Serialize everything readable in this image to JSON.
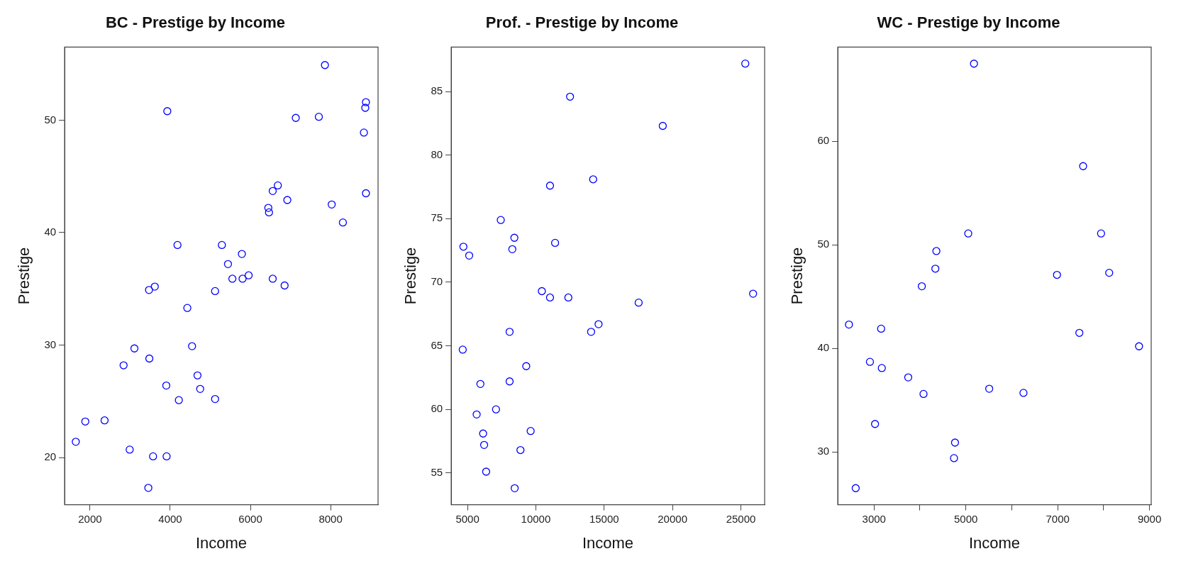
{
  "chart_data": [
    {
      "type": "scatter",
      "title": "BC - Prestige by Income",
      "xlabel": "Income",
      "ylabel": "Prestige",
      "xlim": [
        1366,
        9183
      ],
      "ylim": [
        15.8,
        56.5
      ],
      "xticks": [
        2000,
        4000,
        6000,
        8000
      ],
      "yticks": [
        20,
        30,
        40,
        50
      ],
      "marker": "circle",
      "grid": false,
      "series": [
        {
          "color": "#0000ff",
          "x": [
            1645,
            1882,
            2363,
            2837,
            3107,
            2989,
            3471,
            3615,
            3479,
            3572,
            3454,
            3910,
            3902,
            3927,
            4181,
            4215,
            4426,
            4544,
            4680,
            4747,
            5119,
            5119,
            5288,
            5440,
            5550,
            5787,
            5804,
            5956,
            6556,
            6852,
            6446,
            6463,
            6556,
            6683,
            6920,
            7131,
            7706,
            7858,
            8027,
            8306,
            8830,
            8881,
            8864,
            8881
          ],
          "values": [
            21.4,
            23.2,
            23.3,
            28.2,
            29.7,
            20.7,
            34.9,
            35.2,
            28.8,
            20.1,
            17.3,
            20.1,
            26.4,
            50.8,
            38.9,
            25.1,
            33.3,
            29.9,
            27.3,
            26.1,
            25.2,
            34.8,
            38.9,
            37.2,
            35.9,
            38.1,
            35.9,
            36.2,
            35.9,
            35.3,
            42.2,
            41.8,
            43.7,
            44.2,
            42.9,
            50.2,
            50.3,
            54.9,
            42.5,
            40.9,
            48.9,
            51.6,
            51.1,
            43.5
          ]
        }
      ]
    },
    {
      "type": "scatter",
      "title": "Prof. - Prestige by Income",
      "xlabel": "Income",
      "ylabel": "Prestige",
      "xlim": [
        3807,
        26739
      ],
      "ylim": [
        52.5,
        88.5
      ],
      "xticks": [
        5000,
        10000,
        15000,
        20000,
        25000
      ],
      "yticks": [
        55,
        60,
        65,
        70,
        75,
        80,
        85
      ],
      "marker": "circle",
      "grid": false,
      "series": [
        {
          "color": "#0000ff",
          "x": [
            4702,
            5124,
            4652,
            5944,
            5671,
            6143,
            6217,
            6366,
            7087,
            7435,
            8081,
            8081,
            8280,
            8429,
            8453,
            8876,
            9298,
            9621,
            10441,
            11037,
            11037,
            11410,
            12379,
            12503,
            14044,
            14193,
            14590,
            17522,
            19286,
            25323,
            25894
          ],
          "values": [
            72.8,
            72.1,
            64.7,
            62.0,
            59.6,
            58.1,
            57.2,
            55.1,
            60.0,
            74.9,
            66.1,
            62.2,
            72.6,
            73.5,
            53.8,
            56.8,
            63.4,
            58.3,
            69.3,
            68.8,
            77.6,
            73.1,
            68.8,
            84.6,
            66.1,
            78.1,
            66.7,
            68.4,
            82.3,
            87.2,
            69.1
          ]
        }
      ]
    },
    {
      "type": "scatter",
      "title": "WC - Prestige by Income",
      "xlabel": "Income",
      "ylabel": "Prestige",
      "xlim": [
        2210,
        9037
      ],
      "ylim": [
        24.9,
        69.1
      ],
      "xticks": [
        3000,
        {
          "value": 4000,
          "label": null
        },
        5000,
        {
          "value": 6000,
          "label": null
        },
        7000,
        {
          "value": 8000,
          "label": null
        },
        9000
      ],
      "yticks": [
        30,
        40,
        50,
        60
      ],
      "marker": "circle",
      "grid": false,
      "series": [
        {
          "color": "#0000ff",
          "x": [
            2454,
            2601,
            2911,
            3022,
            3155,
            3170,
            3745,
            4041,
            4078,
            4336,
            4358,
            4742,
            4764,
            5052,
            5177,
            5509,
            6255,
            6985,
            7472,
            7554,
            7945,
            8122,
            8772
          ],
          "values": [
            42.3,
            26.5,
            38.7,
            32.7,
            41.9,
            38.1,
            37.2,
            46.0,
            35.6,
            47.7,
            49.4,
            29.4,
            30.9,
            51.1,
            67.5,
            36.1,
            35.7,
            47.1,
            41.5,
            57.6,
            51.1,
            47.3,
            40.2
          ]
        }
      ]
    }
  ]
}
